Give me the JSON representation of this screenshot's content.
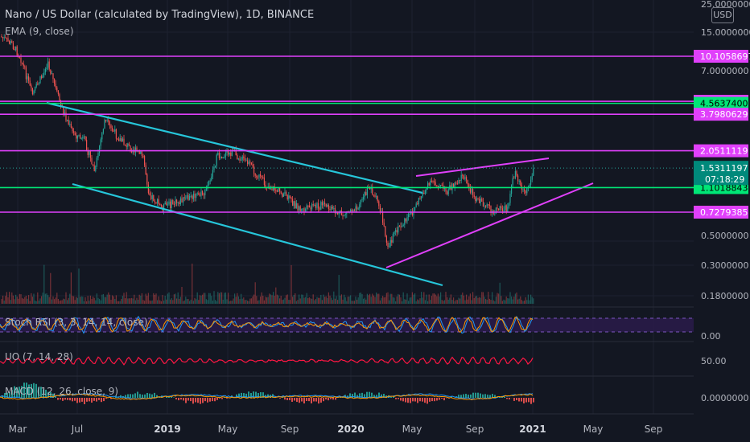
{
  "chart_title": "Nano / US Dollar (calculated by TradingView), 1D, BINANCE",
  "ema_label": "EMA (9, close)",
  "currency_label": "USD",
  "indicators": {
    "stoch": "Stoch RSI (3, 3, 14, 14, close)",
    "uo": "UO (7, 14, 28)",
    "macd": "MACD (12, 26, close, 9)"
  },
  "colors": {
    "background": "#131722",
    "grid": "#1e2230",
    "magenta_line": "#e040fb",
    "green_line": "#00e676",
    "channel_line": "#26c6da",
    "candle_up": "#26a69a",
    "candle_down": "#ef5350",
    "uo_line": "#ff1744",
    "stoch_k": "#2196f3",
    "stoch_d": "#ff9800",
    "stoch_band": "#2a1b4a",
    "price_tag": "#00897b"
  },
  "chart_data": {
    "type": "candlestick",
    "x_axis_labels": [
      "Mar",
      "Jul",
      "2019",
      "May",
      "Sep",
      "2020",
      "May",
      "Sep",
      "2021",
      "May",
      "Sep"
    ],
    "y_scale": "log",
    "y_ticks": [
      "25.0000000",
      "15.0000000",
      "7.0000000",
      "0.5000000",
      "0.3000000",
      "0.1800000"
    ],
    "horizontal_levels": [
      {
        "label": "10.1058697",
        "value": 10.1058697,
        "color": "magenta"
      },
      {
        "label": "4.7264461",
        "value": 4.7264461,
        "color": "magenta"
      },
      {
        "label": "4.5637400",
        "value": 4.56374,
        "color": "green"
      },
      {
        "label": "3.7980629",
        "value": 3.7980629,
        "color": "magenta"
      },
      {
        "label": "2.0511119",
        "value": 2.0511119,
        "color": "magenta"
      },
      {
        "label": "1.1018843",
        "value": 1.1018843,
        "color": "green"
      },
      {
        "label": "0.7279385",
        "value": 0.7279385,
        "color": "magenta"
      }
    ],
    "current_price": {
      "value": "1.5311197",
      "countdown": "07:18:29"
    },
    "indicator_ticks": {
      "stoch": [
        "0.00"
      ],
      "uo": [
        "50.00"
      ],
      "macd": [
        "0.0000000"
      ]
    }
  }
}
